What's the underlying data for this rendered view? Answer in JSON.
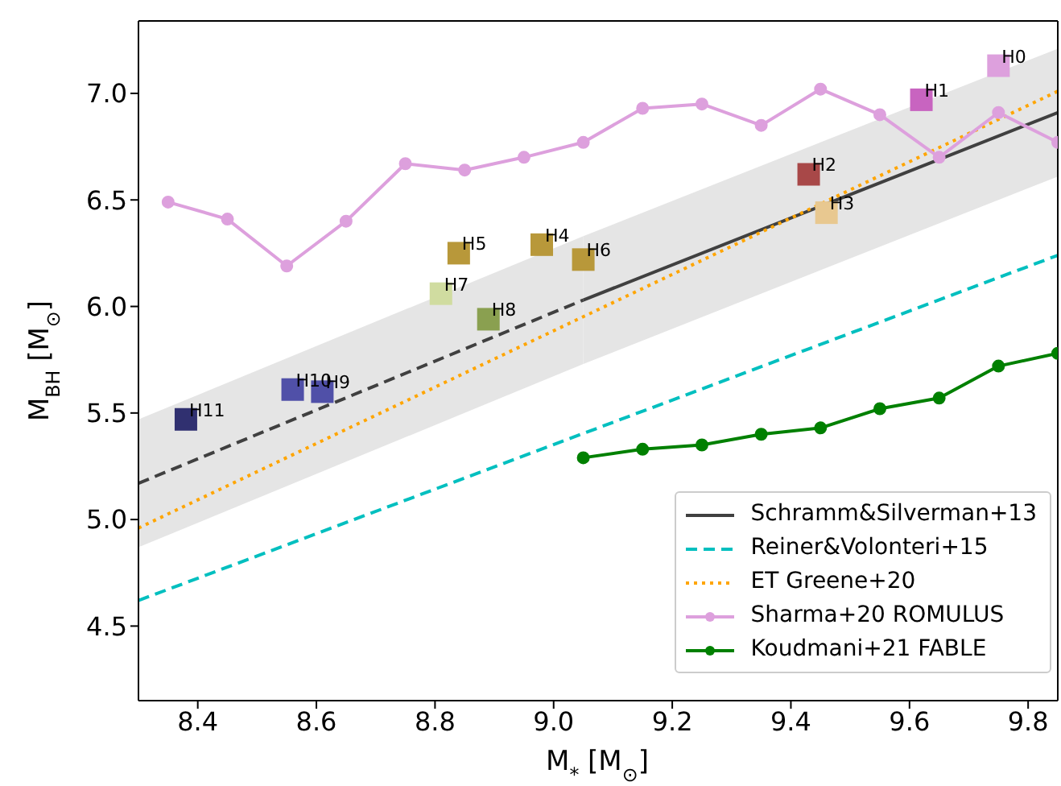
{
  "chart_data": {
    "type": "line",
    "xlabel": "M$_{*}$ [M$_{⊙}$]",
    "ylabel": "M$_{BH}$ [M$_{⊙}$]",
    "xlim": [
      8.3,
      9.85
    ],
    "ylim": [
      4.15,
      7.34
    ],
    "xticks": [
      {
        "value": 8.4,
        "label": "8.4"
      },
      {
        "value": 8.6,
        "label": "8.6"
      },
      {
        "value": 8.8,
        "label": "8.8"
      },
      {
        "value": 9,
        "label": "9.0"
      },
      {
        "value": 9.2,
        "label": "9.2"
      },
      {
        "value": 9.4,
        "label": "9.4"
      },
      {
        "value": 9.6,
        "label": "9.6"
      },
      {
        "value": 9.8,
        "label": "9.8"
      }
    ],
    "yticks": [
      {
        "value": 4.5,
        "label": "4.5"
      },
      {
        "value": 5,
        "label": "5.0"
      },
      {
        "value": 5.5,
        "label": "5.5"
      },
      {
        "value": 6,
        "label": "6.0"
      },
      {
        "value": 6.5,
        "label": "6.5"
      },
      {
        "value": 7,
        "label": "7.0"
      }
    ],
    "grid": false,
    "legend": "bottom right",
    "series": [
      {
        "name": "Schramm&Silverman+13",
        "color": "#404040",
        "line_style": "solid",
        "marker": "none",
        "x": [
          9.05,
          9.85
        ],
        "values": [
          6.03,
          6.91
        ],
        "lower": [
          5.73,
          6.61
        ],
        "upper": [
          6.33,
          7.21
        ]
      },
      {
        "color": "#404040",
        "line_style": "dashed",
        "marker": "none",
        "x": [
          8.3,
          9.05
        ],
        "values": [
          5.17,
          6.03
        ],
        "lower": [
          4.87,
          5.73
        ],
        "upper": [
          5.47,
          6.33
        ]
      },
      {
        "name": "Reiner&Volonteri+15",
        "color": "#00bfbf",
        "line_style": "dashed",
        "marker": "none",
        "x": [
          8.3,
          9.85
        ],
        "values": [
          4.62,
          6.24
        ]
      },
      {
        "name": "ET Greene+20",
        "color": "#ffa500",
        "line_style": "dotted",
        "marker": "none",
        "x": [
          8.3,
          9.85
        ],
        "values": [
          4.96,
          7.01
        ]
      },
      {
        "name": "Sharma+20 ROMULUS",
        "color": "#dda0dd",
        "line_style": "solid",
        "marker": "circle",
        "x": [
          8.35,
          8.45,
          8.55,
          8.65,
          8.75,
          8.85,
          8.95,
          9.05,
          9.15,
          9.25,
          9.35,
          9.45,
          9.55,
          9.65,
          9.75,
          9.85
        ],
        "values": [
          6.49,
          6.41,
          6.19,
          6.4,
          6.67,
          6.64,
          6.7,
          6.77,
          6.93,
          6.95,
          6.85,
          7.02,
          6.9,
          6.7,
          6.91,
          6.77
        ]
      },
      {
        "name": "Koudmani+21 FABLE",
        "color": "#008000",
        "line_style": "solid",
        "marker": "circle",
        "x": [
          9.05,
          9.15,
          9.25,
          9.35,
          9.45,
          9.55,
          9.65,
          9.75,
          9.85
        ],
        "values": [
          5.29,
          5.33,
          5.35,
          5.4,
          5.43,
          5.52,
          5.57,
          5.72,
          5.78
        ]
      },
      {
        "type": "scatter",
        "marker": "square",
        "x": [
          9.75,
          9.62,
          9.43,
          9.46,
          8.98,
          8.84,
          9.05,
          8.81,
          8.89,
          8.61,
          8.56,
          8.38
        ],
        "values": [
          7.13,
          6.97,
          6.62,
          6.44,
          6.29,
          6.25,
          6.22,
          6.06,
          5.94,
          5.6,
          5.61,
          5.47
        ],
        "colors": [
          "#dda0dd",
          "#c864c0",
          "#a84848",
          "#e8c890",
          "#b8983a",
          "#b8983a",
          "#b8983a",
          "#d0dca0",
          "#8aa050",
          "#5050a8",
          "#5050a8",
          "#303070"
        ]
      }
    ],
    "annotations": [
      {
        "text": "H0",
        "x": 9.75,
        "y": 7.13
      },
      {
        "text": "H1",
        "x": 9.62,
        "y": 6.97
      },
      {
        "text": "H2",
        "x": 9.43,
        "y": 6.62
      },
      {
        "text": "H3",
        "x": 9.46,
        "y": 6.44
      },
      {
        "text": "H4",
        "x": 8.98,
        "y": 6.29
      },
      {
        "text": "H5",
        "x": 8.84,
        "y": 6.25
      },
      {
        "text": "H6",
        "x": 9.05,
        "y": 6.22
      },
      {
        "text": "H7",
        "x": 8.81,
        "y": 6.06
      },
      {
        "text": "H8",
        "x": 8.89,
        "y": 5.94
      },
      {
        "text": "H9",
        "x": 8.61,
        "y": 5.6
      },
      {
        "text": "H10",
        "x": 8.56,
        "y": 5.61
      },
      {
        "text": "H11",
        "x": 8.38,
        "y": 5.47
      }
    ]
  }
}
